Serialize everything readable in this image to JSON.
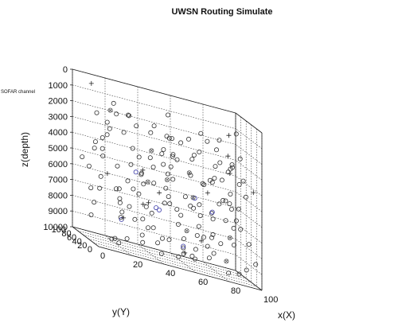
{
  "chart_data": {
    "type": "scatter",
    "title": "UWSN Routing Simulate",
    "annotation": "SOFAR channel",
    "xlabel": "x(X)",
    "ylabel": "y(Y)",
    "zlabel": "z(depth)",
    "xlim": [
      0,
      100
    ],
    "ylim": [
      0,
      100
    ],
    "zlim": [
      0,
      10000
    ],
    "z_reversed": true,
    "grid": true,
    "x_ticks": [
      "0",
      "20",
      "40",
      "60",
      "80",
      "100"
    ],
    "y_ticks": [
      "0",
      "20",
      "40",
      "60",
      "80",
      "100"
    ],
    "z_ticks": [
      "0",
      "1000",
      "2000",
      "3000",
      "4000",
      "5000",
      "6000",
      "7000",
      "8000",
      "9000",
      "10000"
    ],
    "colors": {
      "sensor": "#333333",
      "highlight": "#3a3aa8",
      "relay": "#222222",
      "sink": "#555555"
    },
    "series": [
      {
        "marker": "circle",
        "color": "#333333",
        "points": [
          [
            12,
            18,
            800
          ],
          [
            25,
            40,
            1500
          ],
          [
            33,
            62,
            2200
          ],
          [
            48,
            15,
            3000
          ],
          [
            55,
            78,
            1100
          ],
          [
            62,
            35,
            4200
          ],
          [
            70,
            52,
            2700
          ],
          [
            81,
            20,
            5100
          ],
          [
            90,
            66,
            3600
          ],
          [
            15,
            85,
            6200
          ],
          [
            22,
            55,
            7300
          ],
          [
            38,
            28,
            8100
          ],
          [
            45,
            70,
            5600
          ],
          [
            58,
            90,
            6800
          ],
          [
            66,
            10,
            7700
          ],
          [
            75,
            45,
            9200
          ],
          [
            88,
            82,
            8400
          ],
          [
            95,
            30,
            4600
          ],
          [
            8,
            35,
            3300
          ],
          [
            18,
            70,
            2900
          ],
          [
            28,
            12,
            4800
          ],
          [
            35,
            88,
            3900
          ],
          [
            42,
            50,
            1800
          ],
          [
            52,
            25,
            6500
          ],
          [
            60,
            60,
            7100
          ],
          [
            68,
            80,
            2300
          ],
          [
            78,
            15,
            3800
          ],
          [
            85,
            55,
            5400
          ],
          [
            92,
            88,
            6900
          ],
          [
            5,
            60,
            8600
          ],
          [
            14,
            25,
            9400
          ],
          [
            24,
            78,
            5200
          ],
          [
            31,
            40,
            6300
          ],
          [
            40,
            95,
            4400
          ],
          [
            49,
            62,
            8900
          ],
          [
            57,
            5,
            5900
          ],
          [
            64,
            42,
            3200
          ],
          [
            72,
            72,
            8200
          ],
          [
            80,
            38,
            1500
          ],
          [
            87,
            92,
            2600
          ],
          [
            94,
            12,
            7400
          ],
          [
            10,
            48,
            4100
          ],
          [
            20,
            92,
            3500
          ],
          [
            30,
            5,
            6700
          ],
          [
            39,
            75,
            9600
          ],
          [
            47,
            33,
            2100
          ],
          [
            56,
            85,
            4900
          ],
          [
            63,
            22,
            8700
          ],
          [
            71,
            58,
            6100
          ],
          [
            79,
            95,
            5000
          ],
          [
            86,
            40,
            9800
          ],
          [
            93,
            70,
            3100
          ],
          [
            7,
            80,
            5700
          ],
          [
            17,
            10,
            2400
          ],
          [
            27,
            30,
            7900
          ],
          [
            36,
            58,
            9000
          ],
          [
            44,
            18,
            5300
          ],
          [
            53,
            48,
            3400
          ],
          [
            61,
            75,
            9900
          ],
          [
            69,
            28,
            4500
          ],
          [
            77,
            65,
            2000
          ],
          [
            84,
            8,
            6600
          ],
          [
            91,
            50,
            8000
          ],
          [
            98,
            85,
            1200
          ],
          [
            3,
            15,
            6400
          ],
          [
            13,
            65,
            4700
          ],
          [
            23,
            35,
            9300
          ],
          [
            32,
            82,
            7600
          ],
          [
            41,
            8,
            2800
          ],
          [
            50,
            45,
            6000
          ],
          [
            59,
            68,
            3700
          ],
          [
            67,
            92,
            8800
          ],
          [
            74,
            30,
            6200
          ],
          [
            83,
            75,
            4300
          ],
          [
            89,
            18,
            9500
          ],
          [
            96,
            58,
            2500
          ],
          [
            11,
            98,
            7200
          ],
          [
            21,
            20,
            5500
          ],
          [
            29,
            68,
            1700
          ],
          [
            37,
            42,
            8300
          ],
          [
            46,
            88,
            2600
          ],
          [
            54,
            12,
            9100
          ],
          [
            62,
            55,
            5800
          ],
          [
            70,
            2,
            4000
          ],
          [
            76,
            85,
            7000
          ],
          [
            82,
            48,
            3000
          ],
          [
            90,
            35,
            6300
          ],
          [
            97,
            5,
            8500
          ],
          [
            6,
            45,
            1900
          ],
          [
            16,
            50,
            9700
          ],
          [
            26,
            95,
            6800
          ],
          [
            34,
            15,
            3600
          ],
          [
            43,
            65,
            7500
          ],
          [
            51,
            38,
            2200
          ],
          [
            58,
            78,
            5100
          ],
          [
            65,
            48,
            9400
          ],
          [
            73,
            90,
            3300
          ],
          [
            80,
            62,
            7800
          ],
          [
            86,
            25,
            2900
          ],
          [
            93,
            45,
            5600
          ],
          [
            9,
            72,
            4400
          ],
          [
            19,
            38,
            6900
          ],
          [
            28,
            85,
            8100
          ],
          [
            37,
            22,
            4200
          ],
          [
            45,
            55,
            9200
          ],
          [
            54,
            95,
            3800
          ],
          [
            61,
            18,
            6100
          ],
          [
            69,
            40,
            1400
          ],
          [
            76,
            58,
            8600
          ],
          [
            84,
            98,
            4700
          ],
          [
            91,
            15,
            3500
          ],
          [
            99,
            75,
            7100
          ],
          [
            4,
            88,
            5300
          ],
          [
            12,
            42,
            2300
          ],
          [
            22,
            60,
            9900
          ],
          [
            31,
            25,
            7700
          ],
          [
            40,
            78,
            5900
          ],
          [
            48,
            52,
            4100
          ],
          [
            57,
            32,
            8900
          ],
          [
            64,
            85,
            2700
          ],
          [
            72,
            12,
            6400
          ],
          [
            81,
            65,
            9000
          ],
          [
            88,
            45,
            3200
          ],
          [
            95,
            92,
            5800
          ],
          [
            2,
            30,
            7500
          ],
          [
            15,
            15,
            6100
          ],
          [
            25,
            88,
            2000
          ],
          [
            34,
            48,
            5000
          ],
          [
            43,
            28,
            9600
          ],
          [
            52,
            72,
            6700
          ],
          [
            60,
            98,
            4500
          ],
          [
            67,
            35,
            7300
          ],
          [
            75,
            22,
            3100
          ],
          [
            83,
            85,
            8200
          ],
          [
            90,
            58,
            4900
          ],
          [
            97,
            40,
            9300
          ],
          [
            8,
            62,
            3900
          ],
          [
            18,
            28,
            8000
          ],
          [
            27,
            45,
            4600
          ],
          [
            36,
            92,
            6500
          ],
          [
            44,
            5,
            8400
          ],
          [
            53,
            60,
            2400
          ],
          [
            62,
            82,
            7900
          ],
          [
            70,
            68,
            9700
          ],
          [
            79,
            32,
            5500
          ],
          [
            87,
            5,
            3700
          ],
          [
            94,
            78,
            6000
          ]
        ]
      },
      {
        "marker": "circle",
        "color": "#3a3aa8",
        "points": [
          [
            30,
            45,
            5000
          ],
          [
            48,
            68,
            7200
          ],
          [
            65,
            38,
            5600
          ],
          [
            22,
            50,
            8300
          ],
          [
            78,
            52,
            6300
          ],
          [
            55,
            20,
            8700
          ],
          [
            40,
            30,
            6800
          ]
        ]
      },
      {
        "marker": "cross",
        "color": "#222222",
        "points": [
          [
            10,
            90,
            500
          ],
          [
            35,
            50,
            4800
          ],
          [
            50,
            80,
            6200
          ],
          [
            70,
            20,
            4900
          ],
          [
            88,
            55,
            2500
          ],
          [
            95,
            95,
            1500
          ],
          [
            20,
            30,
            8000
          ],
          [
            60,
            45,
            9300
          ],
          [
            45,
            90,
            7100
          ],
          [
            82,
            10,
            3200
          ],
          [
            15,
            60,
            5700
          ],
          [
            75,
            75,
            8500
          ],
          [
            98,
            20,
            4100
          ],
          [
            28,
            5,
            6600
          ]
        ]
      },
      {
        "marker": "star",
        "color": "#555555",
        "points": [
          [
            20,
            80,
            1800
          ],
          [
            42,
            60,
            3500
          ],
          [
            58,
            25,
            7700
          ],
          [
            72,
            88,
            6000
          ],
          [
            85,
            42,
            9100
          ],
          [
            33,
            18,
            5200
          ],
          [
            66,
            65,
            4300
          ],
          [
            92,
            72,
            7800
          ],
          [
            50,
            50,
            5000
          ]
        ]
      }
    ]
  }
}
